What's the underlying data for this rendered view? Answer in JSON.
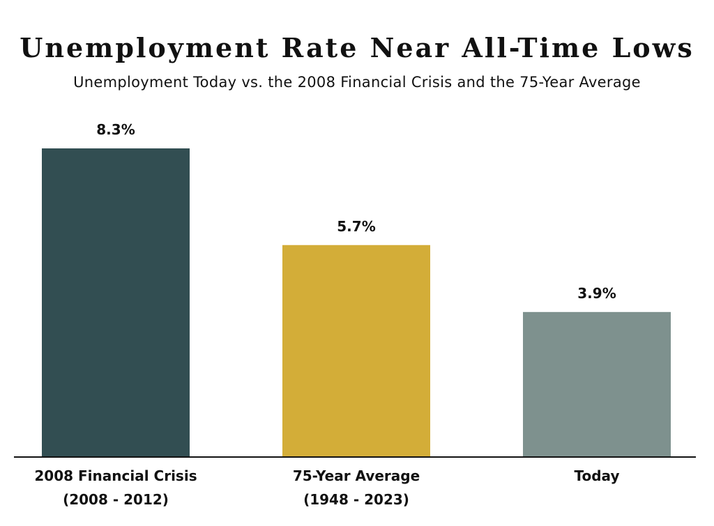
{
  "chart_data": {
    "type": "bar",
    "title": "Unemployment Rate Near All-Time Lows",
    "subtitle": "Unemployment Today vs. the 2008 Financial Crisis and the 75-Year Average",
    "categories": [
      [
        "2008 Financial Crisis",
        "(2008 - 2012)"
      ],
      [
        "75-Year Average",
        "(1948 - 2023)"
      ],
      [
        "Today"
      ]
    ],
    "values": [
      8.3,
      5.7,
      3.9
    ],
    "data_labels": [
      "8.3%",
      "5.7%",
      "3.9%"
    ],
    "colors": [
      "#324e52",
      "#d3ad38",
      "#7e918e"
    ],
    "ylim": [
      0,
      8.3
    ],
    "grid": false,
    "xlabel": "",
    "ylabel": ""
  }
}
